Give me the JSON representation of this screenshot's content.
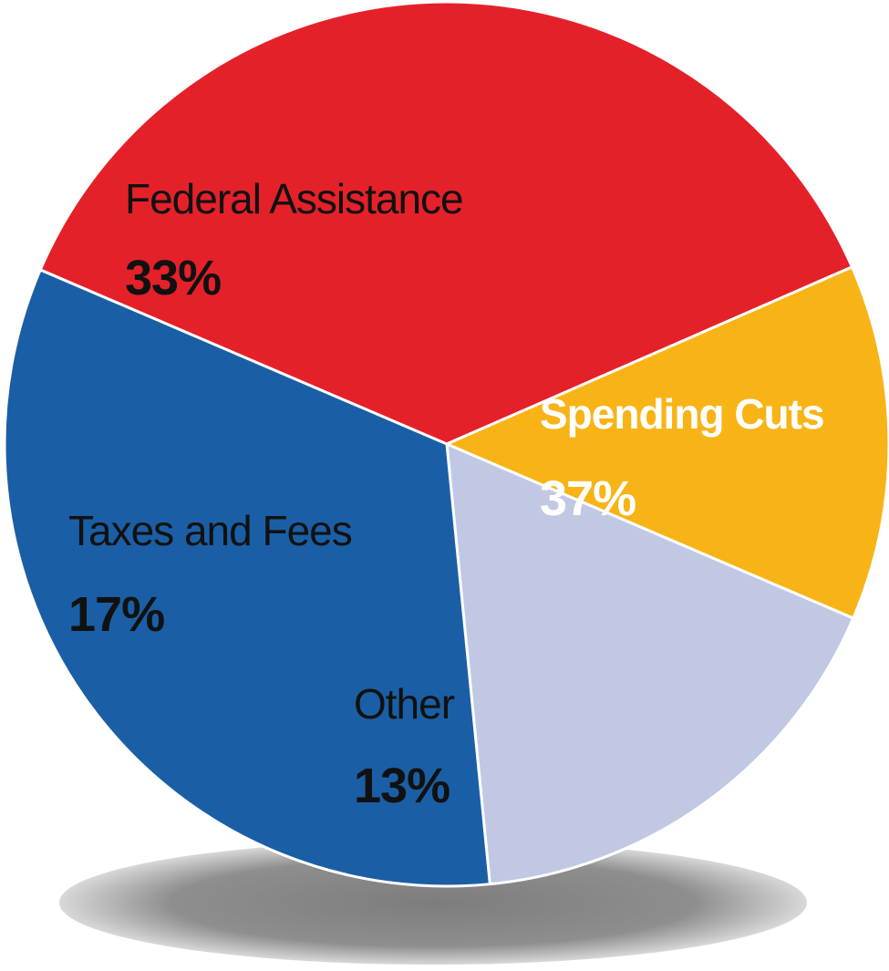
{
  "chart_data": {
    "type": "pie",
    "title": "",
    "slices": [
      {
        "label": "Spending Cuts",
        "value": 37,
        "value_label": "37%",
        "color": "#e42129",
        "text_color": "#ffffff"
      },
      {
        "label": "Other",
        "value": 13,
        "value_label": "13%",
        "color": "#f8b416",
        "text_color": "#111111"
      },
      {
        "label": "Taxes and Fees",
        "value": 17,
        "value_label": "17%",
        "color": "#c0c8e4",
        "text_color": "#111111"
      },
      {
        "label": "Federal Assistance",
        "value": 33,
        "value_label": "33%",
        "color": "#1a5fa5",
        "text_color": "#111111"
      }
    ],
    "legend": "none",
    "shadow": true,
    "shadow_color": "#8a8a8a"
  }
}
